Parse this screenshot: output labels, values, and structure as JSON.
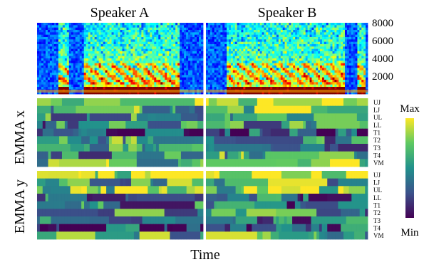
{
  "figure": {
    "speaker_titles": [
      "Speaker A",
      "Speaker B"
    ],
    "xlabel": "Time",
    "ylabel_x": "EMMA x",
    "ylabel_y": "EMMA y"
  },
  "chart_data": [
    {
      "type": "heatmap",
      "panel": "spectrogram",
      "yticks": [
        2000,
        4000,
        6000,
        8000
      ],
      "ylim": [
        0,
        8000
      ],
      "colormap": "jet",
      "speakers": [
        "Speaker A",
        "Speaker B"
      ]
    },
    {
      "type": "heatmap",
      "panel": "EMMA x",
      "channels": [
        "UJ",
        "LJ",
        "UL",
        "LL",
        "T1",
        "T2",
        "T3",
        "T4",
        "VM"
      ],
      "colormap": "viridis",
      "speakers": [
        "Speaker A",
        "Speaker B"
      ]
    },
    {
      "type": "heatmap",
      "panel": "EMMA y",
      "channels": [
        "UJ",
        "LJ",
        "UL",
        "LL",
        "T1",
        "T2",
        "T3",
        "T4",
        "VM"
      ],
      "colormap": "viridis",
      "speakers": [
        "Speaker A",
        "Speaker B"
      ]
    }
  ],
  "colorbar": {
    "max_label": "Max",
    "min_label": "Min"
  },
  "colors": {
    "viridis": [
      "#440154",
      "#3b528b",
      "#21918c",
      "#5ec962",
      "#fde725"
    ],
    "jet": [
      "#00007f",
      "#0000ff",
      "#007fff",
      "#00ffff",
      "#7fff7f",
      "#ffff00",
      "#ff7f00",
      "#ff0000",
      "#7f0000"
    ]
  }
}
